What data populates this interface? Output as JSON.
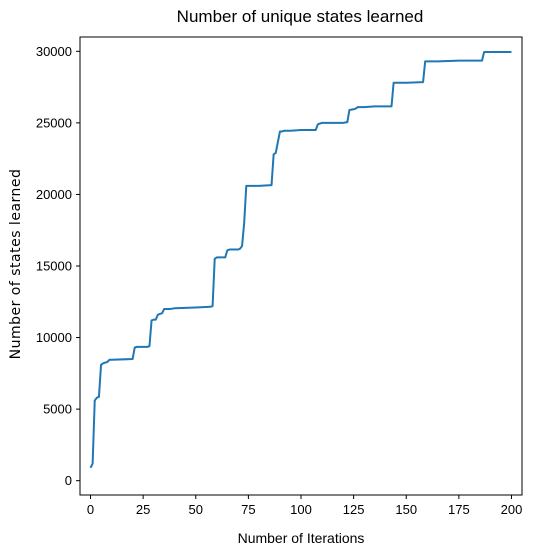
{
  "chart_data": {
    "type": "line",
    "title": "Number of unique states learned",
    "xlabel": "Number of Iterations",
    "ylabel": "Number of states learned",
    "xlim": [
      -5,
      205
    ],
    "ylim": [
      -1000,
      31000
    ],
    "xticks": [
      0,
      25,
      50,
      75,
      100,
      125,
      150,
      175,
      200
    ],
    "yticks": [
      0,
      5000,
      10000,
      15000,
      20000,
      25000,
      30000
    ],
    "grid": false,
    "line_color": "#1f77b4",
    "series": [
      {
        "x": [
          0,
          1,
          2,
          3,
          4,
          5,
          6,
          8,
          9,
          10,
          20,
          21,
          22,
          27,
          28,
          29,
          30,
          31,
          32,
          33,
          34,
          35,
          36,
          37,
          38,
          40,
          50,
          57,
          58,
          59,
          60,
          61,
          64,
          65,
          66,
          70,
          71,
          72,
          73,
          74,
          75,
          80,
          86,
          87,
          88,
          90,
          91,
          92,
          95,
          100,
          107,
          108,
          109,
          110,
          115,
          120,
          122,
          123,
          125,
          126,
          127,
          130,
          135,
          143,
          144,
          145,
          150,
          158,
          159,
          160,
          165,
          175,
          186,
          187,
          188,
          200
        ],
        "y": [
          900,
          1200,
          5600,
          5800,
          5850,
          8100,
          8200,
          8300,
          8450,
          8450,
          8500,
          9300,
          9350,
          9350,
          9400,
          11200,
          11250,
          11250,
          11600,
          11650,
          11700,
          12000,
          12000,
          12000,
          12000,
          12050,
          12100,
          12150,
          12200,
          15500,
          15600,
          15600,
          15600,
          16100,
          16150,
          16150,
          16200,
          16400,
          18000,
          20600,
          20600,
          20600,
          20650,
          22800,
          22900,
          24400,
          24400,
          24450,
          24450,
          24500,
          24500,
          24900,
          24950,
          25000,
          25000,
          25000,
          25050,
          25900,
          25950,
          26000,
          26100,
          26100,
          26150,
          26150,
          27800,
          27800,
          27800,
          27850,
          29300,
          29300,
          29300,
          29350,
          29350,
          29950,
          29950,
          29950
        ]
      }
    ]
  }
}
